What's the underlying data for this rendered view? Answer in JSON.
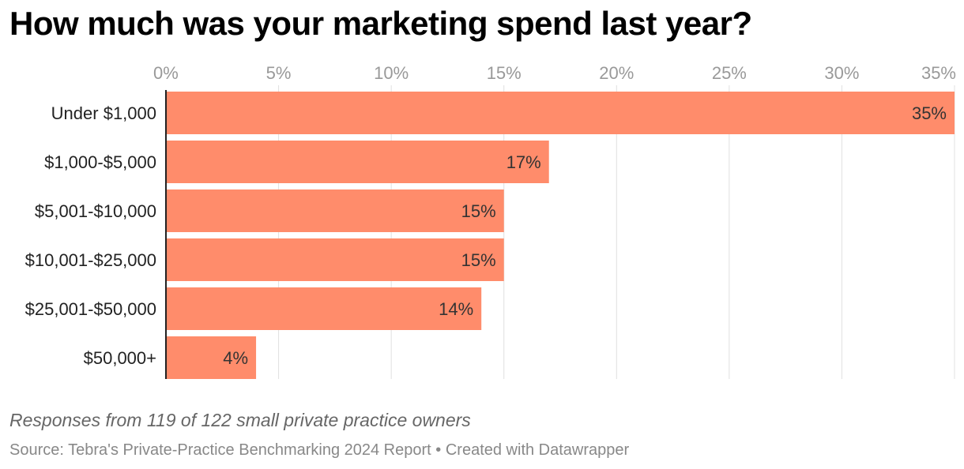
{
  "chart_data": {
    "type": "bar",
    "orientation": "horizontal",
    "title": "How much was your marketing spend last year?",
    "categories": [
      "Under $1,000",
      "$1,000-$5,000",
      "$5,001-$10,000",
      "$10,001-$25,000",
      "$25,001-$50,000",
      "$50,000+"
    ],
    "values": [
      35,
      17,
      15,
      15,
      14,
      4
    ],
    "value_labels": [
      "35%",
      "17%",
      "15%",
      "15%",
      "14%",
      "4%"
    ],
    "xticks": [
      0,
      5,
      10,
      15,
      20,
      25,
      30,
      35
    ],
    "xtick_labels": [
      "0%",
      "5%",
      "10%",
      "15%",
      "20%",
      "25%",
      "30%",
      "35%"
    ],
    "xlim": [
      0,
      35
    ],
    "xlabel": "",
    "ylabel": "",
    "grid": true,
    "axis_position": "top",
    "bar_color": "#ff8c6b"
  },
  "notes": "Responses from 119 of 122 small private practice owners",
  "source": {
    "text": "Source: Tebra's Private-Practice Benchmarking 2024 Report",
    "separator": " • ",
    "credit": "Created with Datawrapper"
  },
  "colors": {
    "bar": "#ff8c6b",
    "grid": "#e0e0e0",
    "tick_text": "#999999",
    "category_text": "#222222",
    "value_text": "#333333"
  }
}
